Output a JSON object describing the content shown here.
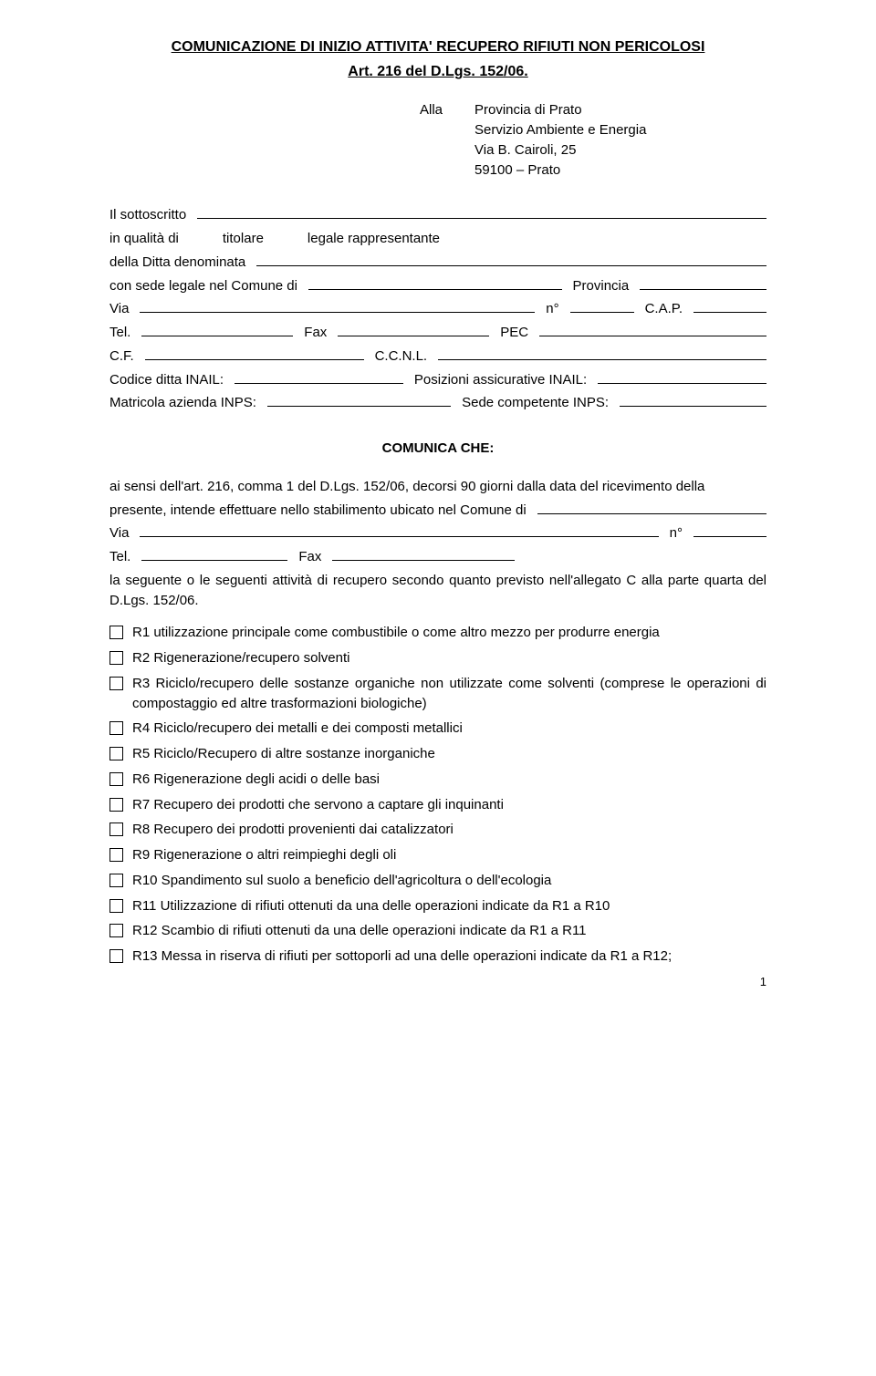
{
  "title": "COMUNICAZIONE DI INIZIO ATTIVITA' RECUPERO RIFIUTI NON PERICOLOSI",
  "subtitle": "Art. 216 del D.Lgs. 152/06.",
  "address": {
    "alla": "Alla",
    "line1": "Provincia di Prato",
    "line2": "Servizio Ambiente e Energia",
    "line3": "Via B. Cairoli, 25",
    "line4": "59100 – Prato"
  },
  "form": {
    "il_sottoscritto": "Il sottoscritto",
    "in_qualita_di": "in qualità di",
    "titolare": "titolare",
    "legale_rappresentante": "legale rappresentante",
    "della_ditta": "della Ditta denominata",
    "con_sede": "con sede legale nel Comune di",
    "provincia": "Provincia",
    "via": "Via",
    "n": "n°",
    "cap": "C.A.P.",
    "tel": "Tel.",
    "fax": "Fax",
    "pec": "PEC",
    "cf": "C.F.",
    "ccnl": "C.C.N.L.",
    "codice_inail": "Codice ditta INAIL:",
    "posizioni_inail": "Posizioni assicurative INAIL:",
    "matricola_inps": "Matricola azienda INPS:",
    "sede_inps": "Sede competente INPS:"
  },
  "section_head": "COMUNICA CHE:",
  "body": {
    "p1a": "ai sensi dell'art. 216, comma 1 del D.Lgs. 152/06, decorsi  90 giorni dalla data del ricevimento della",
    "p1b": "presente, intende effettuare nello stabilimento ubicato nel Comune di",
    "via": "Via",
    "n": "n°",
    "tel": "Tel.",
    "fax": "Fax",
    "p2": "la seguente o le seguenti attività di recupero secondo quanto previsto nell'allegato C alla parte quarta del D.Lgs. 152/06."
  },
  "checkboxes": [
    "R1 utilizzazione principale come combustibile o come altro mezzo per produrre energia",
    "R2 Rigenerazione/recupero solventi",
    "R3 Riciclo/recupero delle sostanze organiche non utilizzate come solventi (comprese le operazioni di compostaggio ed altre trasformazioni biologiche)",
    "R4 Riciclo/recupero dei metalli e dei composti metallici",
    "R5 Riciclo/Recupero di altre sostanze  inorganiche",
    "R6 Rigenerazione degli acidi o delle basi",
    "R7 Recupero dei prodotti che servono a captare gli inquinanti",
    "R8 Recupero dei prodotti provenienti dai catalizzatori",
    "R9 Rigenerazione o altri reimpieghi degli oli",
    "R10 Spandimento sul suolo a beneficio dell'agricoltura o dell'ecologia",
    "R11 Utilizzazione di rifiuti ottenuti da una delle operazioni indicate da R1 a R10",
    "R12 Scambio di rifiuti ottenuti da una delle operazioni indicate da R1 a R11",
    "R13 Messa in riserva di rifiuti per sottoporli ad una delle operazioni indicate da R1 a R12;"
  ],
  "pagenum": "1"
}
